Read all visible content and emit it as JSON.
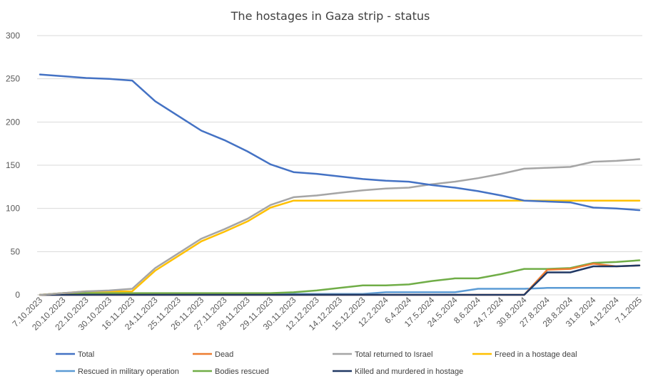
{
  "chart_data": {
    "type": "line",
    "title": "The hostages in Gaza strip - status",
    "xlabel": "",
    "ylabel": "",
    "ylim": [
      0,
      300
    ],
    "yticks": [
      0,
      50,
      100,
      150,
      200,
      250,
      300
    ],
    "grid": true,
    "legend_position": "bottom",
    "categories": [
      "7.10.2023",
      "20.10.2023",
      "22.10.2023",
      "30.10.2023",
      "16.11.2023",
      "24.11.2023",
      "25.11.2023",
      "26.11.2023",
      "27.11.2023",
      "28.11.2023",
      "29.11.2023",
      "30.11.2023",
      "12.12.2023",
      "14.12.2023",
      "15.12.2023",
      "12.2.2024",
      "6.4.2024",
      "17.5.2024",
      "24.5.2024",
      "8.6.2024",
      "24.7.2024",
      "30.8.2024",
      "27.8.2024",
      "28.8.2024",
      "31.8.2024",
      "4.12.2024",
      "7.1.2025"
    ],
    "series": [
      {
        "name": "Total",
        "color": "#4472c4",
        "values": [
          255,
          253,
          251,
          250,
          248,
          224,
          207,
          190,
          179,
          166,
          151,
          142,
          140,
          137,
          134,
          132,
          131,
          127,
          124,
          120,
          115,
          109,
          108,
          107,
          101,
          100,
          98
        ]
      },
      {
        "name": "Dead",
        "color": "#ed7d31",
        "values": [
          0,
          0,
          0,
          0,
          0,
          0,
          0,
          0,
          0,
          0,
          0,
          0,
          0,
          0,
          0,
          0,
          0,
          0,
          0,
          0,
          0,
          0,
          29,
          30,
          36,
          33,
          34
        ]
      },
      {
        "name": "Total returned to Israel",
        "color": "#a5a5a5",
        "values": [
          0,
          2,
          4,
          5,
          7,
          31,
          48,
          65,
          76,
          88,
          104,
          113,
          115,
          118,
          121,
          123,
          124,
          128,
          131,
          135,
          140,
          146,
          147,
          148,
          154,
          155,
          157
        ]
      },
      {
        "name": "Freed in a hostage deal",
        "color": "#ffc000",
        "values": [
          0,
          2,
          4,
          4,
          4,
          28,
          45,
          62,
          73,
          85,
          101,
          109,
          109,
          109,
          109,
          109,
          109,
          109,
          109,
          109,
          109,
          109,
          109,
          109,
          109,
          109,
          109
        ]
      },
      {
        "name": "Rescued in military operation",
        "color": "#5b9bd5",
        "values": [
          0,
          0,
          0,
          1,
          1,
          1,
          1,
          1,
          1,
          1,
          1,
          1,
          1,
          1,
          1,
          3,
          3,
          3,
          3,
          7,
          7,
          7,
          8,
          8,
          8,
          8,
          8
        ]
      },
      {
        "name": "Bodies rescued",
        "color": "#70ad47",
        "values": [
          0,
          2,
          2,
          2,
          2,
          2,
          2,
          2,
          2,
          2,
          2,
          3,
          5,
          8,
          11,
          11,
          12,
          16,
          19,
          19,
          24,
          30,
          30,
          31,
          37,
          38,
          40
        ]
      },
      {
        "name": "Killed and murdered in hostage",
        "color": "#203864",
        "values": [
          0,
          0,
          0,
          0,
          0,
          0,
          0,
          0,
          0,
          0,
          0,
          0,
          0,
          0,
          0,
          0,
          0,
          0,
          0,
          0,
          0,
          0,
          26,
          26,
          33,
          33,
          34
        ]
      }
    ]
  }
}
